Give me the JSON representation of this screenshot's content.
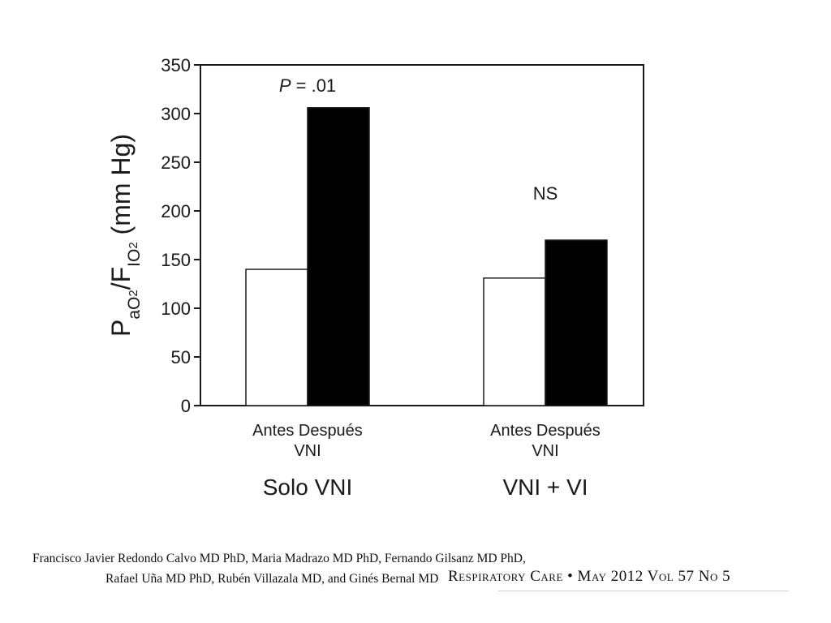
{
  "chart_data": {
    "type": "bar",
    "ylabel": "PaO2/FIO2 (mm Hg)",
    "ylim": [
      0,
      350
    ],
    "yticks": [
      0,
      50,
      100,
      150,
      200,
      250,
      300,
      350
    ],
    "grid": false,
    "groups": [
      {
        "name": "Solo VNI",
        "categories": [
          "Antes",
          "Después"
        ],
        "category_sublabel": "VNI",
        "values": [
          140,
          306
        ],
        "annotation": "P = .01"
      },
      {
        "name": "VNI + VI",
        "categories": [
          "Antes",
          "Después"
        ],
        "category_sublabel": "VNI",
        "values": [
          131,
          170
        ],
        "annotation": "NS"
      }
    ],
    "bar_colors": [
      "#ffffff",
      "#000000"
    ]
  },
  "footer": {
    "authors_line1": "Francisco Javier Redondo Calvo MD PhD, Maria Madrazo MD PhD, Fernando Gilsanz MD PhD,",
    "authors_line2": "Rafael Uña MD PhD, Rubén Villazala MD, and Ginés Bernal MD",
    "journal_name": "Respiratory Care",
    "journal_bullet": "•",
    "journal_issue": "May 2012 Vol 57 No 5"
  }
}
